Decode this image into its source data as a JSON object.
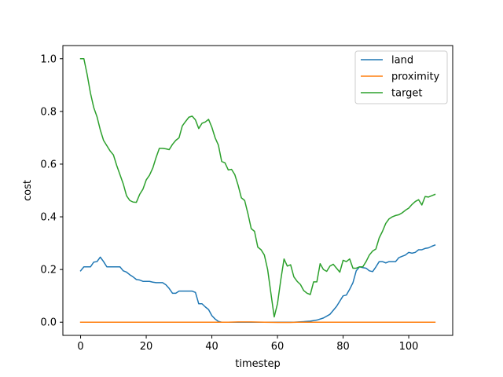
{
  "chart_data": {
    "type": "line",
    "title": "",
    "xlabel": "timestep",
    "ylabel": "cost",
    "xlim": [
      -5.4,
      113.4
    ],
    "ylim": [
      -0.05,
      1.05
    ],
    "xticks": [
      0,
      20,
      40,
      60,
      80,
      100
    ],
    "yticks": [
      0.0,
      0.2,
      0.4,
      0.6,
      0.8,
      1.0
    ],
    "xtick_labels": [
      "0",
      "20",
      "40",
      "60",
      "80",
      "100"
    ],
    "ytick_labels": [
      "0.0",
      "0.2",
      "0.4",
      "0.6",
      "0.8",
      "1.0"
    ],
    "grid": false,
    "legend_position": "top-right",
    "series": [
      {
        "name": "land",
        "color": "#1f77b4",
        "points": [
          [
            0,
            0.195
          ],
          [
            1,
            0.21
          ],
          [
            2,
            0.21
          ],
          [
            3,
            0.21
          ],
          [
            4,
            0.228
          ],
          [
            5,
            0.23
          ],
          [
            6,
            0.247
          ],
          [
            7,
            0.23
          ],
          [
            8,
            0.21
          ],
          [
            9,
            0.21
          ],
          [
            10,
            0.21
          ],
          [
            11,
            0.21
          ],
          [
            12,
            0.21
          ],
          [
            13,
            0.195
          ],
          [
            14,
            0.19
          ],
          [
            15,
            0.18
          ],
          [
            16,
            0.172
          ],
          [
            17,
            0.162
          ],
          [
            18,
            0.16
          ],
          [
            19,
            0.155
          ],
          [
            20,
            0.155
          ],
          [
            21,
            0.155
          ],
          [
            22,
            0.152
          ],
          [
            23,
            0.15
          ],
          [
            24,
            0.15
          ],
          [
            25,
            0.15
          ],
          [
            26,
            0.142
          ],
          [
            27,
            0.128
          ],
          [
            28,
            0.11
          ],
          [
            29,
            0.11
          ],
          [
            30,
            0.118
          ],
          [
            31,
            0.118
          ],
          [
            32,
            0.118
          ],
          [
            33,
            0.118
          ],
          [
            34,
            0.118
          ],
          [
            35,
            0.113
          ],
          [
            36,
            0.07
          ],
          [
            37,
            0.07
          ],
          [
            38,
            0.058
          ],
          [
            39,
            0.048
          ],
          [
            40,
            0.025
          ],
          [
            41,
            0.012
          ],
          [
            42,
            0.003
          ],
          [
            43,
            0.0
          ],
          [
            44,
            0.0
          ],
          [
            45,
            0.0
          ],
          [
            46,
            0.0
          ],
          [
            47,
            0.0
          ],
          [
            50,
            0.0
          ],
          [
            55,
            0.0
          ],
          [
            60,
            0.0
          ],
          [
            65,
            0.0
          ],
          [
            68,
            0.002
          ],
          [
            70,
            0.004
          ],
          [
            72,
            0.008
          ],
          [
            74,
            0.016
          ],
          [
            76,
            0.03
          ],
          [
            78,
            0.06
          ],
          [
            80,
            0.1
          ],
          [
            81,
            0.103
          ],
          [
            82,
            0.125
          ],
          [
            83,
            0.15
          ],
          [
            84,
            0.195
          ],
          [
            85,
            0.21
          ],
          [
            86,
            0.207
          ],
          [
            87,
            0.205
          ],
          [
            88,
            0.195
          ],
          [
            89,
            0.192
          ],
          [
            90,
            0.21
          ],
          [
            91,
            0.23
          ],
          [
            92,
            0.23
          ],
          [
            93,
            0.225
          ],
          [
            94,
            0.23
          ],
          [
            95,
            0.23
          ],
          [
            96,
            0.23
          ],
          [
            97,
            0.245
          ],
          [
            98,
            0.25
          ],
          [
            99,
            0.255
          ],
          [
            100,
            0.265
          ],
          [
            101,
            0.262
          ],
          [
            102,
            0.265
          ],
          [
            103,
            0.275
          ],
          [
            104,
            0.275
          ],
          [
            105,
            0.28
          ],
          [
            106,
            0.282
          ],
          [
            107,
            0.288
          ],
          [
            108,
            0.293
          ]
        ]
      },
      {
        "name": "proximity",
        "color": "#ff7f0e",
        "points": [
          [
            0,
            0.0
          ],
          [
            10,
            0.0
          ],
          [
            20,
            0.0
          ],
          [
            30,
            0.0
          ],
          [
            40,
            0.0
          ],
          [
            45,
            0.0
          ],
          [
            48,
            0.001
          ],
          [
            52,
            0.001
          ],
          [
            56,
            0.0
          ],
          [
            60,
            -0.001
          ],
          [
            64,
            -0.001
          ],
          [
            66,
            0.0
          ],
          [
            70,
            0.0
          ],
          [
            80,
            0.0
          ],
          [
            90,
            0.0
          ],
          [
            100,
            0.0
          ],
          [
            108,
            0.0
          ]
        ]
      },
      {
        "name": "target",
        "color": "#2ca02c",
        "points": [
          [
            0,
            1.0
          ],
          [
            1,
            1.0
          ],
          [
            2,
            0.94
          ],
          [
            3,
            0.87
          ],
          [
            4,
            0.815
          ],
          [
            5,
            0.78
          ],
          [
            6,
            0.73
          ],
          [
            7,
            0.69
          ],
          [
            8,
            0.67
          ],
          [
            9,
            0.65
          ],
          [
            10,
            0.635
          ],
          [
            11,
            0.595
          ],
          [
            12,
            0.56
          ],
          [
            13,
            0.525
          ],
          [
            14,
            0.48
          ],
          [
            15,
            0.462
          ],
          [
            16,
            0.456
          ],
          [
            17,
            0.455
          ],
          [
            18,
            0.485
          ],
          [
            19,
            0.505
          ],
          [
            20,
            0.54
          ],
          [
            21,
            0.558
          ],
          [
            22,
            0.585
          ],
          [
            23,
            0.625
          ],
          [
            24,
            0.66
          ],
          [
            25,
            0.66
          ],
          [
            26,
            0.658
          ],
          [
            27,
            0.655
          ],
          [
            28,
            0.675
          ],
          [
            29,
            0.69
          ],
          [
            30,
            0.7
          ],
          [
            31,
            0.745
          ],
          [
            32,
            0.762
          ],
          [
            33,
            0.778
          ],
          [
            34,
            0.782
          ],
          [
            35,
            0.768
          ],
          [
            36,
            0.735
          ],
          [
            37,
            0.755
          ],
          [
            38,
            0.76
          ],
          [
            39,
            0.77
          ],
          [
            40,
            0.74
          ],
          [
            41,
            0.7
          ],
          [
            42,
            0.672
          ],
          [
            43,
            0.61
          ],
          [
            44,
            0.605
          ],
          [
            45,
            0.578
          ],
          [
            46,
            0.58
          ],
          [
            47,
            0.56
          ],
          [
            48,
            0.52
          ],
          [
            49,
            0.472
          ],
          [
            50,
            0.462
          ],
          [
            51,
            0.412
          ],
          [
            52,
            0.355
          ],
          [
            53,
            0.345
          ],
          [
            54,
            0.285
          ],
          [
            55,
            0.275
          ],
          [
            56,
            0.255
          ],
          [
            57,
            0.2
          ],
          [
            58,
            0.11
          ],
          [
            59,
            0.02
          ],
          [
            60,
            0.07
          ],
          [
            61,
            0.16
          ],
          [
            62,
            0.24
          ],
          [
            63,
            0.213
          ],
          [
            64,
            0.218
          ],
          [
            65,
            0.172
          ],
          [
            66,
            0.155
          ],
          [
            67,
            0.143
          ],
          [
            68,
            0.12
          ],
          [
            69,
            0.11
          ],
          [
            70,
            0.105
          ],
          [
            71,
            0.153
          ],
          [
            72,
            0.153
          ],
          [
            73,
            0.222
          ],
          [
            74,
            0.2
          ],
          [
            75,
            0.193
          ],
          [
            76,
            0.213
          ],
          [
            77,
            0.22
          ],
          [
            78,
            0.205
          ],
          [
            79,
            0.19
          ],
          [
            80,
            0.235
          ],
          [
            81,
            0.23
          ],
          [
            82,
            0.24
          ],
          [
            83,
            0.205
          ],
          [
            84,
            0.205
          ],
          [
            85,
            0.21
          ],
          [
            86,
            0.21
          ],
          [
            87,
            0.23
          ],
          [
            88,
            0.255
          ],
          [
            89,
            0.27
          ],
          [
            90,
            0.278
          ],
          [
            91,
            0.32
          ],
          [
            92,
            0.345
          ],
          [
            93,
            0.375
          ],
          [
            94,
            0.392
          ],
          [
            95,
            0.4
          ],
          [
            96,
            0.405
          ],
          [
            97,
            0.408
          ],
          [
            98,
            0.415
          ],
          [
            99,
            0.425
          ],
          [
            100,
            0.433
          ],
          [
            101,
            0.447
          ],
          [
            102,
            0.458
          ],
          [
            103,
            0.465
          ],
          [
            104,
            0.445
          ],
          [
            105,
            0.477
          ],
          [
            106,
            0.475
          ],
          [
            107,
            0.48
          ],
          [
            108,
            0.485
          ]
        ]
      }
    ]
  }
}
